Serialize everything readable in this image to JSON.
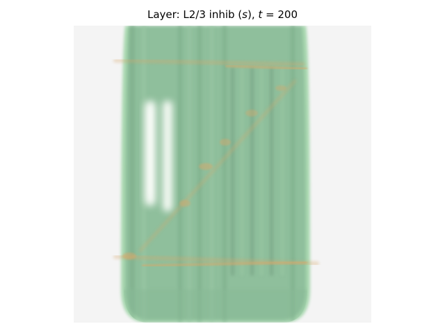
{
  "figure": {
    "title_prefix": "Layer: L2/3 inhib (",
    "title_var": "s",
    "title_middle": "), ",
    "title_t": "t",
    "title_eq": " = 200"
  },
  "colors": {
    "figure_background": "#ffffff",
    "image_background": "#f4f4f4",
    "body_green": "#8fbf9c",
    "body_edge_green": "#a9d8b0",
    "stripe_dark": "#7aab88",
    "highlight_white": "#f7fbf6",
    "trace_orange": "#d8a86a"
  }
}
